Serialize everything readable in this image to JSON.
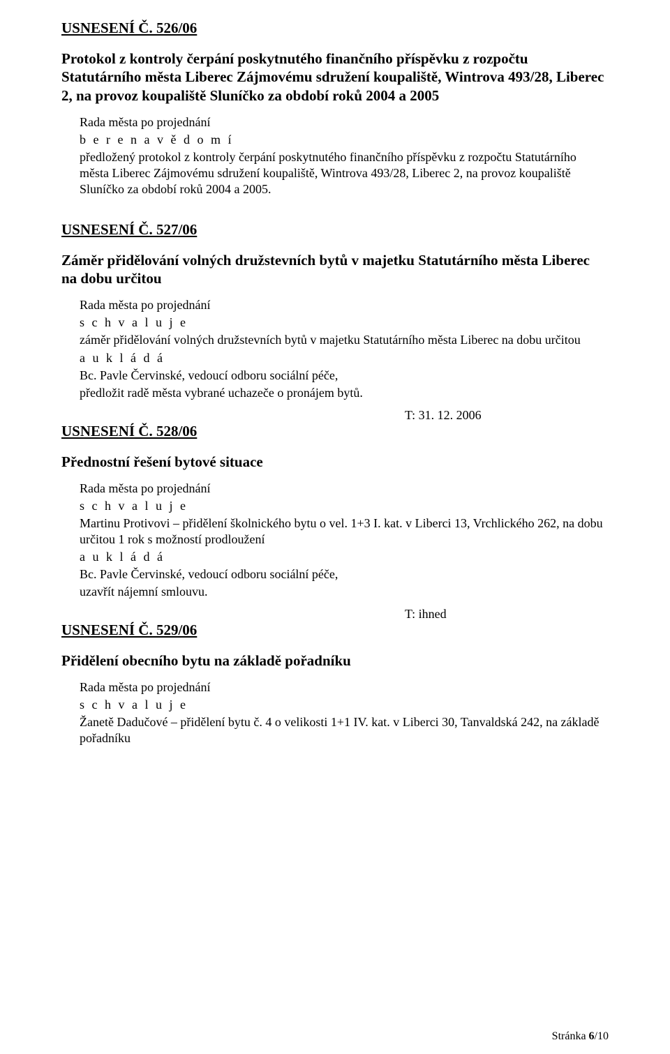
{
  "res526": {
    "heading": "USNESENÍ Č. 526/06",
    "title": "Protokol z kontroly čerpání poskytnutého finančního příspěvku z rozpočtu Statutárního města Liberec Zájmovému sdružení koupaliště, Wintrova 493/28, Liberec 2, na provoz koupaliště Sluníčko za období roků 2004 a 2005",
    "line1": "Rada města po projednání",
    "line2": "b e r e   n a   v ě d o m í",
    "line3": "předložený protokol z kontroly čerpání poskytnutého finančního příspěvku z rozpočtu Statutárního města Liberec Zájmovému sdružení koupaliště, Wintrova 493/28, Liberec 2, na provoz koupaliště Sluníčko za období roků 2004 a 2005."
  },
  "res527": {
    "heading": "USNESENÍ Č. 527/06",
    "title": "Záměr přidělování volných družstevních bytů v majetku Statutárního města Liberec na dobu určitou",
    "line1": "Rada města po projednání",
    "line2": "s c h v a l u j e",
    "line3": "záměr přidělování volných družstevních bytů v majetku Statutárního města Liberec na dobu určitou",
    "line4": "a   u k l á d á",
    "line5": "Bc. Pavle Červinské, vedoucí odboru sociální péče,",
    "line6": "předložit radě města vybrané uchazeče o pronájem bytů.",
    "date": "T: 31. 12. 2006"
  },
  "res528": {
    "heading": "USNESENÍ Č. 528/06",
    "title": "Přednostní řešení bytové situace",
    "line1": "Rada města po projednání",
    "line2": "s c h v a l u j e",
    "line3": "Martinu Protivovi – přidělení školnického bytu o vel. 1+3 I. kat. v Liberci 13, Vrchlického 262, na dobu určitou 1 rok s možností prodloužení",
    "line4": "a   u k l á d á",
    "line5": "Bc. Pavle Červinské, vedoucí odboru sociální péče,",
    "line6": "uzavřít nájemní smlouvu.",
    "date": "T: ihned"
  },
  "res529": {
    "heading": "USNESENÍ Č. 529/06",
    "title": "Přidělení obecního bytu na základě pořadníku",
    "line1": "Rada města po projednání",
    "line2": "s c h v a l u j e",
    "line3": "Žanetě Dadučové – přidělení bytu č. 4 o velikosti 1+1 IV. kat. v Liberci 30, Tanvaldská 242, na základě pořadníku"
  },
  "footer": {
    "label": "Stránka ",
    "current": "6",
    "sep": "/",
    "total": "10"
  }
}
